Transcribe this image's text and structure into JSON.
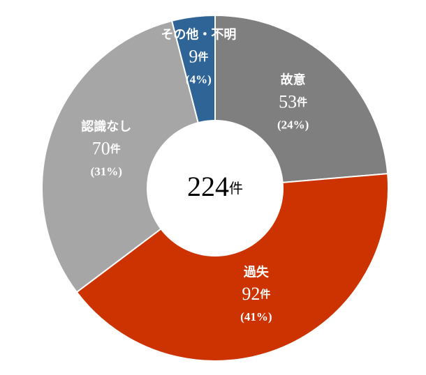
{
  "chart_data": {
    "type": "donut",
    "categories": [
      "故意",
      "過失",
      "認識なし",
      "その他・不明"
    ],
    "values": [
      53,
      92,
      70,
      9
    ],
    "percent_labels": [
      "(24%)",
      "(41%)",
      "(31%)",
      "(4%)"
    ],
    "colors": [
      "#7f7f7f",
      "#cc3300",
      "#a6a6a6",
      "#2e6496"
    ],
    "unit": "件",
    "total": 224
  }
}
